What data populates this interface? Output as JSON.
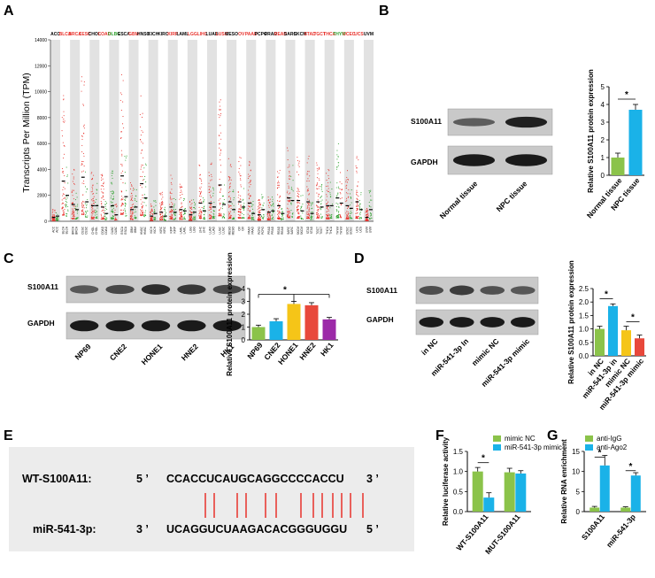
{
  "panel_labels": [
    "A",
    "B",
    "C",
    "D",
    "E",
    "F",
    "G"
  ],
  "colors": {
    "red": "#e8312b",
    "green": "#2ca02c",
    "black": "#000000",
    "blue": "#1ab2e8",
    "yellow": "#f5c518",
    "purple": "#9c2aa8",
    "barred": "#e8483b",
    "mimicnc": "#8bc34a",
    "gray": "#555555"
  },
  "chart_data": [
    {
      "panel": "A",
      "type": "scatter",
      "ylabel": "Transcripts Per Million (TPM)",
      "ylim": [
        0,
        14000
      ],
      "yticks": [
        "0",
        "2000",
        "4000",
        "6000",
        "8000",
        "10000",
        "12000",
        "14000"
      ],
      "cancer_types": [
        {
          "name": "ACC",
          "color": "black"
        },
        {
          "name": "BLCA",
          "color": "red"
        },
        {
          "name": "BRCA",
          "color": "red"
        },
        {
          "name": "CESC",
          "color": "red"
        },
        {
          "name": "CHOL",
          "color": "black"
        },
        {
          "name": "COAD",
          "color": "red"
        },
        {
          "name": "DLBC",
          "color": "green"
        },
        {
          "name": "ESCA",
          "color": "black"
        },
        {
          "name": "GBM",
          "color": "red"
        },
        {
          "name": "HNSC",
          "color": "black"
        },
        {
          "name": "KICH",
          "color": "black"
        },
        {
          "name": "KIRC",
          "color": "black"
        },
        {
          "name": "KIRP",
          "color": "red"
        },
        {
          "name": "LAML",
          "color": "black"
        },
        {
          "name": "LGG",
          "color": "red"
        },
        {
          "name": "LIHC",
          "color": "red"
        },
        {
          "name": "LUAD",
          "color": "black"
        },
        {
          "name": "LUSC",
          "color": "red"
        },
        {
          "name": "MESO",
          "color": "black"
        },
        {
          "name": "OV",
          "color": "red"
        },
        {
          "name": "PAAD",
          "color": "red"
        },
        {
          "name": "PCPG",
          "color": "black"
        },
        {
          "name": "PRAD",
          "color": "black"
        },
        {
          "name": "READ",
          "color": "red"
        },
        {
          "name": "SARC",
          "color": "black"
        },
        {
          "name": "SKCM",
          "color": "black"
        },
        {
          "name": "STAD",
          "color": "red"
        },
        {
          "name": "TGCT",
          "color": "red"
        },
        {
          "name": "THCA",
          "color": "red"
        },
        {
          "name": "THYM",
          "color": "green"
        },
        {
          "name": "UCEC",
          "color": "red"
        },
        {
          "name": "UCS",
          "color": "red"
        },
        {
          "name": "UVM",
          "color": "black"
        }
      ],
      "tumor_medians": [
        300,
        3100,
        1300,
        3400,
        1200,
        1100,
        1200,
        3500,
        900,
        2900,
        400,
        700,
        1100,
        900,
        500,
        1400,
        1400,
        2800,
        1500,
        1500,
        1400,
        500,
        700,
        1200,
        1800,
        1600,
        1500,
        1500,
        1200,
        1800,
        1200,
        1500,
        300
      ],
      "normal_medians": [
        400,
        2000,
        900,
        1500,
        1200,
        600,
        500,
        1900,
        1100,
        1800,
        600,
        400,
        700,
        800,
        700,
        800,
        1100,
        1300,
        900,
        1100,
        600,
        900,
        800,
        600,
        1600,
        800,
        600,
        1100,
        1200,
        1400,
        1000,
        900,
        900
      ]
    },
    {
      "panel": "B",
      "type": "bar",
      "categories": [
        "Normal tissue",
        "NPC tissue"
      ],
      "values": [
        1.0,
        3.7
      ],
      "errors": [
        0.25,
        0.3
      ],
      "ylabel": "Relative S100A11 protein expression",
      "ylim": [
        0,
        5
      ],
      "yticks": [
        "0",
        "1",
        "2",
        "3",
        "4",
        "5"
      ],
      "significance": "*"
    },
    {
      "panel": "C",
      "type": "bar",
      "categories": [
        "NP69",
        "CNE2",
        "HONE1",
        "HNE2",
        "HK1"
      ],
      "values": [
        1.0,
        1.45,
        2.8,
        2.7,
        1.6
      ],
      "errors": [
        0.15,
        0.2,
        0.2,
        0.2,
        0.15
      ],
      "ylabel": "Relative S100A11 protein expression",
      "ylim": [
        0,
        4
      ],
      "yticks": [
        "0",
        "1",
        "2",
        "3",
        "4"
      ],
      "significance": "*"
    },
    {
      "panel": "D",
      "type": "bar",
      "categories": [
        "in NC",
        "miR-541-3p in",
        "mimic NC",
        "miR-541-3p mimic"
      ],
      "values": [
        1.0,
        1.85,
        0.95,
        0.65
      ],
      "errors": [
        0.1,
        0.08,
        0.15,
        0.12
      ],
      "ylabel": "Relative S100A11 protein expression",
      "ylim": [
        0,
        2.5
      ],
      "yticks": [
        "0.0",
        "0.5",
        "1.0",
        "1.5",
        "2.0",
        "2.5"
      ],
      "significance": [
        "*",
        "*"
      ]
    },
    {
      "panel": "F",
      "type": "bar",
      "categories": [
        "WT-S100A11",
        "MUT-S100A11"
      ],
      "series": [
        {
          "name": "mimic NC",
          "values": [
            1.0,
            0.98
          ],
          "errors": [
            0.1,
            0.1
          ]
        },
        {
          "name": "miR-541-3p mimic",
          "values": [
            0.35,
            0.95
          ],
          "errors": [
            0.12,
            0.07
          ]
        }
      ],
      "ylabel": "Relative luciferase activity",
      "ylim": [
        0,
        1.5
      ],
      "yticks": [
        "0.0",
        "0.5",
        "1.0",
        "1.5"
      ],
      "significance": "*"
    },
    {
      "panel": "G",
      "type": "bar",
      "categories": [
        "S100A11",
        "miR-541-3p"
      ],
      "series": [
        {
          "name": "anti-IgG",
          "values": [
            1.0,
            1.0
          ],
          "errors": [
            0.3,
            0.2
          ]
        },
        {
          "name": "anti-Ago2",
          "values": [
            11.5,
            9.0
          ],
          "errors": [
            2.5,
            0.7
          ]
        }
      ],
      "ylabel": "Relative RNA enrichment",
      "ylim": [
        0,
        15
      ],
      "yticks": [
        "0",
        "5",
        "10",
        "15"
      ],
      "significance": "*"
    }
  ],
  "blots": {
    "B": {
      "rows": [
        "S100A11",
        "GAPDH"
      ],
      "lanes": [
        "Normal tissue",
        "NPC tissue"
      ]
    },
    "C": {
      "rows": [
        "S100A11",
        "GAPDH"
      ],
      "lanes": [
        "NP69",
        "CNE2",
        "HONE1",
        "HNE2",
        "HK1"
      ]
    },
    "D": {
      "rows": [
        "S100A11",
        "GAPDH"
      ],
      "lanes": [
        "in NC",
        "miR-541-3p In",
        "mimic NC",
        "miR-541-3p mimic"
      ]
    }
  },
  "sequence": {
    "wt_label": "WT-S100A11:",
    "wt_prime5": "5 ’",
    "wt_seq": "CCACCUCAUGCAGGCCCCACCU",
    "wt_prime3": "3 ’",
    "mir_label": "miR-541-3p:",
    "mir_prime3": "3 ’",
    "mir_seq": "UCAGGUCUAAGACACGGGUGGU",
    "mir_prime5": "5 ’"
  }
}
